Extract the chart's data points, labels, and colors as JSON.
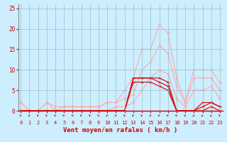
{
  "hours": [
    0,
    1,
    2,
    3,
    4,
    5,
    6,
    7,
    8,
    9,
    10,
    11,
    12,
    13,
    14,
    15,
    16,
    17,
    18,
    19,
    20,
    21,
    22,
    23
  ],
  "rafales_max": [
    2,
    0,
    0,
    2,
    1,
    1,
    1,
    1,
    1,
    1,
    2,
    2,
    5,
    8,
    15,
    15,
    21,
    19,
    8,
    2,
    10,
    10,
    10,
    7
  ],
  "rafales_moy": [
    2,
    0,
    0,
    2,
    0,
    1,
    1,
    1,
    1,
    1,
    2,
    2,
    3,
    4,
    10,
    12,
    16,
    14,
    6,
    2,
    8,
    8,
    8,
    5
  ],
  "rafales_min": [
    0,
    0,
    0,
    0,
    0,
    0,
    0,
    0,
    0,
    0,
    0,
    1,
    1,
    2,
    5,
    8,
    10,
    9,
    3,
    1,
    5,
    5,
    6,
    3
  ],
  "vent_max": [
    0,
    0,
    0,
    0,
    0,
    0,
    0,
    0,
    0,
    0,
    0,
    0,
    0,
    8,
    8,
    8,
    8,
    7,
    0,
    0,
    0,
    2,
    2,
    1
  ],
  "vent_moy": [
    0,
    0,
    0,
    0,
    0,
    0,
    0,
    0,
    0,
    0,
    0,
    0,
    0,
    8,
    8,
    8,
    7,
    6,
    0,
    0,
    0,
    1,
    2,
    1
  ],
  "vent_min": [
    0,
    0,
    0,
    0,
    0,
    0,
    0,
    0,
    0,
    0,
    0,
    0,
    0,
    7,
    7,
    7,
    6,
    5,
    0,
    0,
    0,
    0,
    1,
    0
  ],
  "wind_dirs": [
    225,
    225,
    225,
    225,
    225,
    225,
    225,
    225,
    225,
    225,
    225,
    225,
    225,
    225,
    225,
    225,
    225,
    225,
    225,
    225,
    315,
    315,
    315,
    225
  ],
  "xlabel": "Vent moyen/en rafales ( km/h )",
  "bg_color": "#cceeff",
  "grid_color": "#99bbbb",
  "line_color_moyen": "#dd0000",
  "line_color_rafales": "#ffaaaa",
  "axis_color": "#cc0000",
  "tick_color": "#cc0000",
  "label_color": "#cc0000",
  "ylim": [
    0,
    26
  ],
  "xlim": [
    -0.3,
    23.3
  ]
}
